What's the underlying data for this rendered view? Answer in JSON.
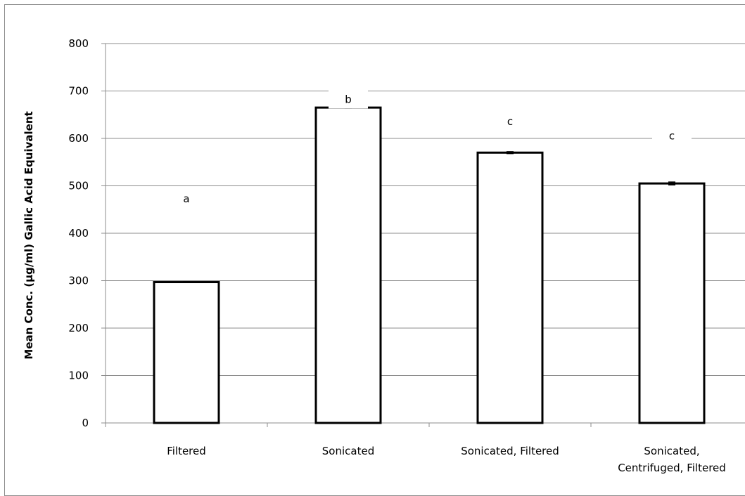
{
  "chart_data": {
    "type": "bar",
    "title": "",
    "xlabel": "",
    "ylabel": "Mean Conc. (µg/ml) Gallic Acid Equivalent",
    "ylim": [
      0,
      800
    ],
    "yticks": [
      0,
      100,
      200,
      300,
      400,
      500,
      600,
      700,
      800
    ],
    "grid": true,
    "legend": "none",
    "categories": [
      [
        "Filtered"
      ],
      [
        "Sonicated"
      ],
      [
        "Sonicated, Filtered"
      ],
      [
        "Sonicated,",
        "Centrifuged, Filtered"
      ]
    ],
    "values": [
      297,
      665,
      570,
      505
    ],
    "errors": [
      1,
      1,
      2,
      3
    ],
    "significance_labels": [
      "a",
      "b",
      "c",
      "c"
    ],
    "significance_label_values": [
      465,
      675,
      628,
      598
    ],
    "colors": {
      "bar_fill": "#ffffff",
      "bar_stroke": "#000000",
      "grid": "#8c8c8c",
      "axis": "#8c8c8c"
    }
  }
}
